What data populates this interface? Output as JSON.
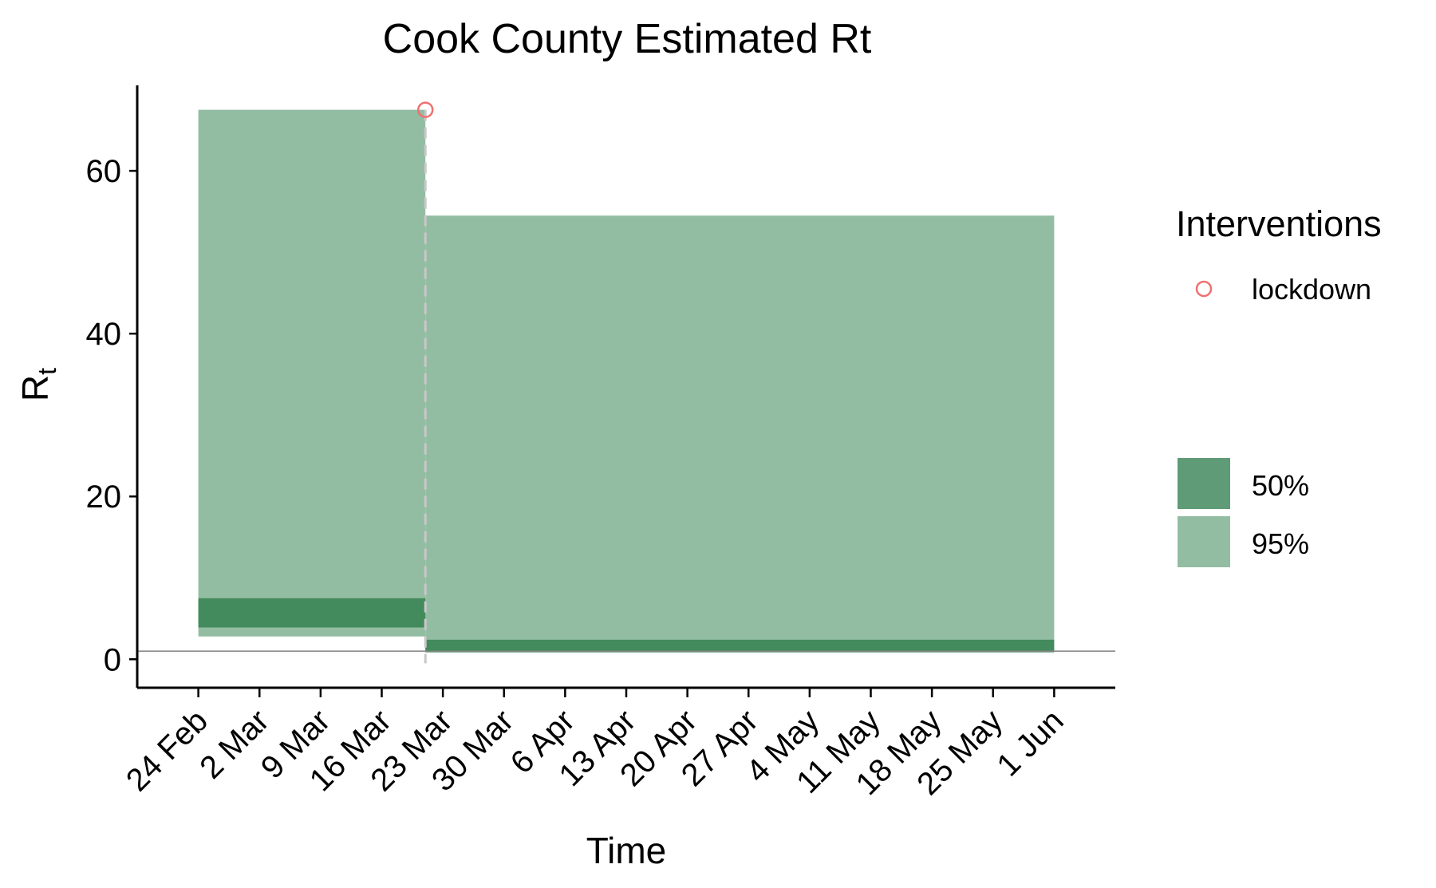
{
  "chart_data": {
    "type": "area",
    "title": "Cook County Estimated Rt",
    "xlabel": "Time",
    "ylabel": "R",
    "ylabel_subscript": "t",
    "x_tick_labels": [
      "24 Feb",
      "2 Mar",
      "9 Mar",
      "16 Mar",
      "23 Mar",
      "30 Mar",
      "6 Apr",
      "13 Apr",
      "20 Apr",
      "27 Apr",
      "4 May",
      "11 May",
      "18 May",
      "25 May",
      "1 Jun"
    ],
    "y_ticks": [
      0,
      20,
      40,
      60
    ],
    "ylim": [
      -3.5,
      70.5
    ],
    "xlim_days": [
      -7,
      105
    ],
    "reference_line_y": 1,
    "grid": false,
    "series": [
      {
        "name": "95%",
        "color": "#93bda2",
        "segments": [
          {
            "x_start": "24 Feb",
            "x_end": "21 Mar",
            "lower": 2.8,
            "upper": 67.5
          },
          {
            "x_start": "21 Mar",
            "x_end": "1 Jun",
            "lower": 0.8,
            "upper": 54.5
          }
        ]
      },
      {
        "name": "50%",
        "color": "#438b5c",
        "segments": [
          {
            "x_start": "24 Feb",
            "x_end": "21 Mar",
            "lower": 3.9,
            "upper": 7.5
          },
          {
            "x_start": "21 Mar",
            "x_end": "1 Jun",
            "lower": 1.0,
            "upper": 2.4
          }
        ]
      }
    ],
    "interventions": [
      {
        "name": "lockdown",
        "date": "21 Mar",
        "color": "#f07070"
      }
    ],
    "legend": {
      "interventions_title": "Interventions",
      "intervention_items": [
        "lockdown"
      ],
      "band_items": [
        {
          "label": "50%",
          "color": "#5f9b76"
        },
        {
          "label": "95%",
          "color": "#93bda2"
        }
      ],
      "placement": "right"
    }
  }
}
